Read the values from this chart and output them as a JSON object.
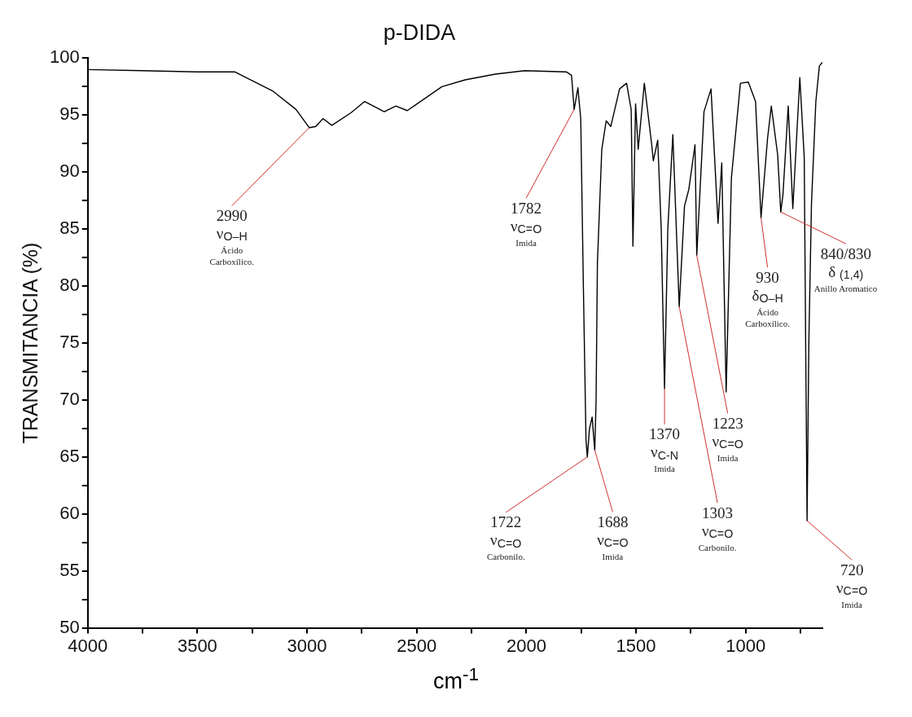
{
  "chart_data": {
    "type": "line",
    "title": "p-DIDA",
    "xlabel": "cm$^{-1}$",
    "ylabel": "TRANSMITANCIA (%)",
    "xlim": [
      4000,
      650
    ],
    "ylim": [
      50,
      100
    ],
    "xticks": [
      4000,
      {
        "value": 3750,
        "label": null
      },
      3500,
      {
        "value": 3250,
        "label": null
      },
      3000,
      {
        "value": 2750,
        "label": null
      },
      2500,
      {
        "value": 2250,
        "label": null
      },
      2000,
      {
        "value": 1750,
        "label": null
      },
      1500,
      {
        "value": 1250,
        "label": null
      },
      1000,
      {
        "value": 750,
        "label": null
      }
    ],
    "yticks": [
      50,
      {
        "value": 52.5,
        "label": null
      },
      55,
      {
        "value": 57.5,
        "label": null
      },
      60,
      {
        "value": 62.5,
        "label": null
      },
      65,
      {
        "value": 67.5,
        "label": null
      },
      70,
      {
        "value": 72.5,
        "label": null
      },
      75,
      {
        "value": 77.5,
        "label": null
      },
      80,
      {
        "value": 82.5,
        "label": null
      },
      85,
      {
        "value": 87.5,
        "label": null
      },
      90,
      {
        "value": 92.5,
        "label": null
      },
      95,
      {
        "value": 97.5,
        "label": null
      },
      100
    ],
    "grid": false,
    "series": [
      {
        "color": "#000000",
        "x": [
          4000,
          3750,
          3500,
          3330,
          3155,
          3050,
          2990,
          2960,
          2927,
          2887,
          2800,
          2737,
          2648,
          2595,
          2543,
          2385,
          2279,
          2142,
          2008,
          1818,
          1794,
          1782,
          1765,
          1752,
          1740,
          1728,
          1722,
          1712,
          1700,
          1692,
          1688,
          1682,
          1676,
          1656,
          1636,
          1615,
          1575,
          1543,
          1522,
          1514,
          1502,
          1490,
          1462,
          1429,
          1421,
          1401,
          1385,
          1370,
          1355,
          1332,
          1303,
          1279,
          1259,
          1231,
          1223,
          1190,
          1158,
          1126,
          1109,
          1089,
          1065,
          1024,
          988,
          955,
          930,
          900,
          883,
          854,
          840,
          830,
          806,
          785,
          753,
          733,
          720,
          712,
          700,
          680,
          664,
          652
        ],
        "values": [
          99.0,
          98.9,
          98.8,
          98.8,
          97.1,
          95.5,
          93.9,
          94.0,
          94.7,
          94.1,
          95.2,
          96.2,
          95.3,
          95.8,
          95.4,
          97.5,
          98.1,
          98.6,
          98.9,
          98.8,
          98.5,
          95.5,
          97.4,
          94.7,
          80,
          66.5,
          65.0,
          67.5,
          68.5,
          66.5,
          65.6,
          70,
          82,
          92,
          94.5,
          94,
          97.3,
          97.8,
          95.5,
          83.5,
          96,
          92,
          97.8,
          92.5,
          91,
          92.8,
          85,
          71.0,
          85,
          93.3,
          78.2,
          87,
          88.5,
          92.4,
          82.7,
          95.3,
          97.3,
          85.5,
          90.8,
          70.7,
          89.5,
          97.8,
          97.9,
          96.2,
          86.0,
          93,
          95.8,
          91.5,
          86.5,
          88,
          95.8,
          86.8,
          98.3,
          91.3,
          59.4,
          75,
          87.2,
          96.2,
          99.3,
          99.6
        ]
      }
    ],
    "annotations": [
      {
        "text": "2990\nν$_{O–H}$\nÁcido\nCarboxílico.",
        "x": 2990,
        "y": 93.9
      },
      {
        "text": "1782\nν$_{C=O}$\nImida",
        "x": 1782,
        "y": 95.5
      },
      {
        "text": "1722\nν$_{C=O}$\nCarbonilo.",
        "x": 1722,
        "y": 65.0
      },
      {
        "text": "1688\nν$_{C=O}$\nImida",
        "x": 1688,
        "y": 65.6
      },
      {
        "text": "1370\nν$_{C-N}$\nImida",
        "x": 1370,
        "y": 71.0
      },
      {
        "text": "1303\nν$_{C=O}$\nCarbonilo.",
        "x": 1303,
        "y": 78.2
      },
      {
        "text": "1223\nν$_{C=O}$\nImida",
        "x": 1223,
        "y": 82.7
      },
      {
        "text": "930\nδ$_{O–H}$\nÁcido\nCarboxílico.",
        "x": 930,
        "y": 86.0
      },
      {
        "text": "840/830\nδ $_{(1,4)}$\nAnillo Aromatico",
        "x": 840,
        "y": 86.5
      },
      {
        "text": "720\nν$_{C=O}$\nImida",
        "x": 720,
        "y": 59.4
      }
    ]
  }
}
